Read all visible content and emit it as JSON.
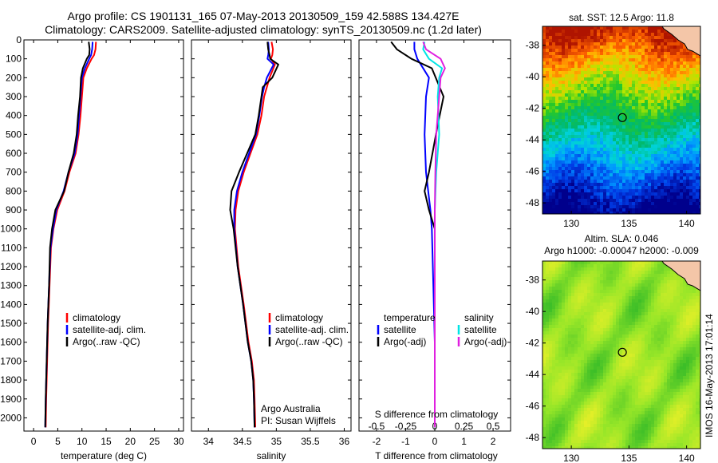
{
  "header": {
    "title_line1": "Argo profile: CS 1901131_165 07-May-2013 20130509_159 42.588S 134.427E",
    "title_line2": "Climatology: CARS2009. Satellite-adjusted climatology: synTS_20130509.nc (1.2d later)"
  },
  "footer": {
    "timestamp": "IMOS 16-May-2013 17:01:14"
  },
  "colors": {
    "climatology": "#ff0000",
    "satellite": "#0000ff",
    "argo": "#000000",
    "satellite_salinity": "#00e5e5",
    "argo_salinity": "#e020e0"
  },
  "chart_data": [
    {
      "type": "line",
      "xlabel": "temperature (deg C)",
      "ylabel": "",
      "xlim": [
        -2,
        31
      ],
      "ylim": [
        2070,
        0
      ],
      "xticks": [
        0,
        5,
        10,
        15,
        20,
        25,
        30
      ],
      "yticks": [
        0,
        100,
        200,
        300,
        400,
        500,
        600,
        700,
        800,
        900,
        1000,
        1100,
        1200,
        1300,
        1400,
        1500,
        1600,
        1700,
        1800,
        1900,
        2000
      ],
      "legend": [
        "climatology",
        "satellite-adj. clim.",
        "Argo(..raw -QC)"
      ],
      "legend_position": "lower-center",
      "series": [
        {
          "name": "climatology",
          "color": "#ff0000",
          "x": [
            12.9,
            12.8,
            12.5,
            12.0,
            11.0,
            10.3,
            10.0,
            9.7,
            9.3,
            8.7,
            7.4,
            6.4,
            4.9,
            4.1,
            3.6,
            3.3,
            3.0,
            2.8,
            2.7,
            2.6,
            2.5
          ],
          "y": [
            10,
            50,
            80,
            100,
            150,
            200,
            300,
            400,
            500,
            600,
            700,
            800,
            900,
            1000,
            1100,
            1300,
            1500,
            1700,
            1800,
            1900,
            2050
          ]
        },
        {
          "name": "satellite-adj. clim.",
          "color": "#0000ff",
          "x": [
            12.2,
            12.1,
            11.9,
            11.5,
            10.6,
            10.0,
            9.7,
            9.4,
            9.1,
            8.5,
            7.2,
            6.2,
            4.7,
            4.0,
            3.5,
            3.2,
            2.9,
            2.7,
            2.6,
            2.5,
            2.4
          ],
          "y": [
            10,
            50,
            80,
            100,
            150,
            200,
            300,
            400,
            500,
            600,
            700,
            800,
            900,
            1000,
            1100,
            1300,
            1500,
            1700,
            1800,
            1900,
            2050
          ]
        },
        {
          "name": "Argo(..raw -QC)",
          "color": "#000000",
          "x": [
            11.4,
            11.6,
            11.5,
            11.0,
            10.2,
            9.8,
            9.6,
            9.2,
            8.9,
            8.3,
            7.2,
            6.3,
            4.5,
            3.8,
            3.4,
            3.2,
            2.9,
            2.7,
            2.6,
            2.5,
            2.4
          ],
          "y": [
            10,
            50,
            80,
            100,
            150,
            200,
            300,
            400,
            500,
            600,
            700,
            800,
            900,
            1000,
            1100,
            1300,
            1500,
            1700,
            1800,
            1900,
            2050
          ]
        }
      ]
    },
    {
      "type": "line",
      "xlabel": "salinity",
      "ylabel": "",
      "xlim": [
        33.75,
        36.1
      ],
      "ylim": [
        2070,
        0
      ],
      "xticks": [
        34,
        34.5,
        35,
        35.5,
        36
      ],
      "xticklabels": [
        "34",
        "34.5",
        "35",
        "35.5",
        "36"
      ],
      "legend": [
        "climatology",
        "satellite-adj. clim.",
        "Argo(..raw -QC)"
      ],
      "legend_position": "lower-center",
      "annotations": [
        "Argo Australia",
        "PI: Susan Wijffels"
      ],
      "series": [
        {
          "name": "climatology",
          "color": "#ff0000",
          "x": [
            34.93,
            34.95,
            34.94,
            34.92,
            34.98,
            34.9,
            34.86,
            34.82,
            34.78,
            34.72,
            34.62,
            34.52,
            34.44,
            34.4,
            34.39,
            34.44,
            34.52,
            34.59,
            34.64,
            34.67,
            34.68,
            34.69
          ],
          "y": [
            10,
            50,
            80,
            100,
            130,
            200,
            250,
            300,
            400,
            500,
            600,
            700,
            800,
            900,
            1000,
            1200,
            1400,
            1600,
            1700,
            1800,
            1900,
            2050
          ]
        },
        {
          "name": "satellite-adj. clim.",
          "color": "#0000ff",
          "x": [
            34.88,
            34.89,
            34.88,
            34.87,
            34.96,
            34.86,
            34.82,
            34.79,
            34.75,
            34.7,
            34.6,
            34.5,
            34.42,
            34.38,
            34.38,
            34.43,
            34.51,
            34.58,
            34.63,
            34.66,
            34.67,
            34.68
          ],
          "y": [
            10,
            50,
            80,
            100,
            130,
            200,
            250,
            300,
            400,
            500,
            600,
            700,
            800,
            900,
            1000,
            1200,
            1400,
            1600,
            1700,
            1800,
            1900,
            2050
          ]
        },
        {
          "name": "Argo(..raw -QC)",
          "color": "#000000",
          "x": [
            34.87,
            34.88,
            34.9,
            34.91,
            35.03,
            34.94,
            34.8,
            34.78,
            34.74,
            34.69,
            34.57,
            34.45,
            34.34,
            34.32,
            34.37,
            34.43,
            34.51,
            34.58,
            34.63,
            34.66,
            34.67,
            34.68
          ],
          "y": [
            10,
            50,
            80,
            100,
            130,
            200,
            250,
            300,
            400,
            500,
            600,
            700,
            800,
            900,
            1000,
            1200,
            1400,
            1600,
            1700,
            1800,
            1900,
            2050
          ]
        }
      ]
    },
    {
      "type": "line",
      "xlabel": "T difference from climatology",
      "xlabel_top": "S difference from climatology",
      "xlim": [
        -2.6,
        2.6
      ],
      "ylim": [
        2070,
        0
      ],
      "xticks": [
        -2,
        -1,
        0,
        1,
        2
      ],
      "top_xticks": [
        -0.5,
        -0.25,
        0,
        0.25,
        0.5
      ],
      "legend": [
        "temperature",
        "satellite",
        "Argo(-adj)",
        "salinity",
        "satellite",
        "Argo(-adj)"
      ],
      "legend_position": "lower-center",
      "series": [
        {
          "name": "satellite",
          "color": "#0000ff",
          "x": [
            -0.7,
            -0.7,
            -0.6,
            -0.2,
            -0.3,
            -0.35,
            -0.3,
            -0.15,
            -0.1,
            -0.05,
            0.0,
            0.0,
            0.0
          ],
          "y": [
            10,
            50,
            100,
            200,
            300,
            500,
            700,
            900,
            1000,
            1300,
            1600,
            1900,
            2050
          ]
        },
        {
          "name": "Argo(-adj)",
          "color": "#000000",
          "x": [
            -1.5,
            -1.3,
            -0.8,
            -0.1,
            0.3,
            0.1,
            -0.2,
            -0.35,
            -0.2,
            0.0,
            0.0,
            0.0,
            0.0,
            0.0
          ],
          "y": [
            10,
            50,
            100,
            150,
            300,
            450,
            700,
            800,
            900,
            1000,
            1300,
            1600,
            1900,
            2050
          ]
        },
        {
          "name": "satellite",
          "color": "#00e5e5",
          "x": [
            -0.35,
            -0.4,
            -0.2,
            0.25,
            0.15,
            0.1,
            0.15,
            0.05,
            0.0,
            0.0,
            0.0,
            0.0
          ],
          "y": [
            10,
            50,
            100,
            150,
            200,
            300,
            500,
            700,
            900,
            1200,
            1600,
            2050
          ]
        },
        {
          "name": "Argo(-adj)",
          "color": "#e020e0",
          "x": [
            -0.4,
            -0.3,
            0.2,
            0.35,
            0.2,
            0.15,
            0.05,
            0.02,
            0.0,
            0.0,
            0.0
          ],
          "y": [
            10,
            50,
            100,
            150,
            200,
            300,
            500,
            700,
            900,
            1300,
            2050
          ]
        }
      ]
    },
    {
      "type": "heatmap",
      "title": "sat. SST: 12.5 Argo: 11.8",
      "xlim": [
        127.5,
        141.2
      ],
      "ylim": [
        -48.7,
        -36.8
      ],
      "xticks": [
        130,
        135,
        140
      ],
      "yticks": [
        -38,
        -40,
        -42,
        -44,
        -46,
        -48
      ],
      "marker": {
        "lon": 134.427,
        "lat": -42.588
      }
    },
    {
      "type": "heatmap",
      "title": "Altim. SLA: 0.046",
      "subtitle": "Argo h1000: -0.00047 h2000: -0.009",
      "xlim": [
        127.5,
        141.2
      ],
      "ylim": [
        -48.7,
        -36.8
      ],
      "xticks": [
        130,
        135,
        140
      ],
      "yticks": [
        -38,
        -40,
        -42,
        -44,
        -46,
        -48
      ],
      "marker": {
        "lon": 134.427,
        "lat": -42.588
      }
    }
  ]
}
